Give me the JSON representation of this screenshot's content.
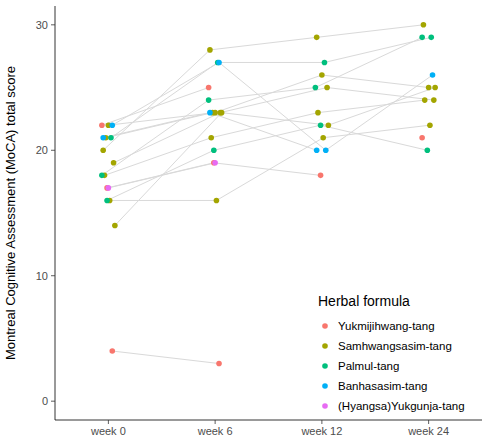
{
  "chart_data": {
    "type": "scatter",
    "y_label": "Montreal Cognitive Assessment (MoCA) total score",
    "legend_title": "Herbal formula",
    "legend": "bottom-right",
    "grid": false,
    "marker": "circle",
    "line_style": "solid",
    "categories": [
      "week 0",
      "week 6",
      "week 12",
      "week 24"
    ],
    "ylim": [
      -1.5,
      31.5
    ],
    "yticks": [
      0,
      10,
      20,
      30
    ],
    "series": [
      {
        "name": "Yukmijihwang-tang",
        "color": "#F8766D",
        "patients": [
          [
            22,
            25,
            null,
            21
          ],
          [
            17,
            19,
            18,
            null
          ],
          [
            4,
            3,
            null,
            null
          ]
        ]
      },
      {
        "name": "Samhwangsasim-tang",
        "color": "#A3A500",
        "patients": [
          [
            20,
            28,
            29,
            30
          ],
          [
            22,
            23,
            26,
            25
          ],
          [
            19,
            23,
            25,
            24
          ],
          [
            18,
            21,
            23,
            24
          ],
          [
            16,
            16,
            21,
            22
          ],
          [
            14,
            23,
            22,
            25
          ],
          [
            21,
            23,
            null,
            null
          ]
        ]
      },
      {
        "name": "Palmul-tang",
        "color": "#00BF7D",
        "patients": [
          [
            21,
            27,
            27,
            29
          ],
          [
            18,
            24,
            25,
            29
          ],
          [
            16,
            20,
            22,
            20
          ]
        ]
      },
      {
        "name": "Banhasasim-tang",
        "color": "#00B0F6",
        "patients": [
          [
            22,
            27,
            20,
            26
          ],
          [
            21,
            23,
            20,
            null
          ]
        ]
      },
      {
        "name": "(Hyangsa)Yukgunja-tang",
        "color": "#E76BF3",
        "patients": [
          [
            17,
            19,
            null,
            null
          ]
        ]
      }
    ]
  }
}
